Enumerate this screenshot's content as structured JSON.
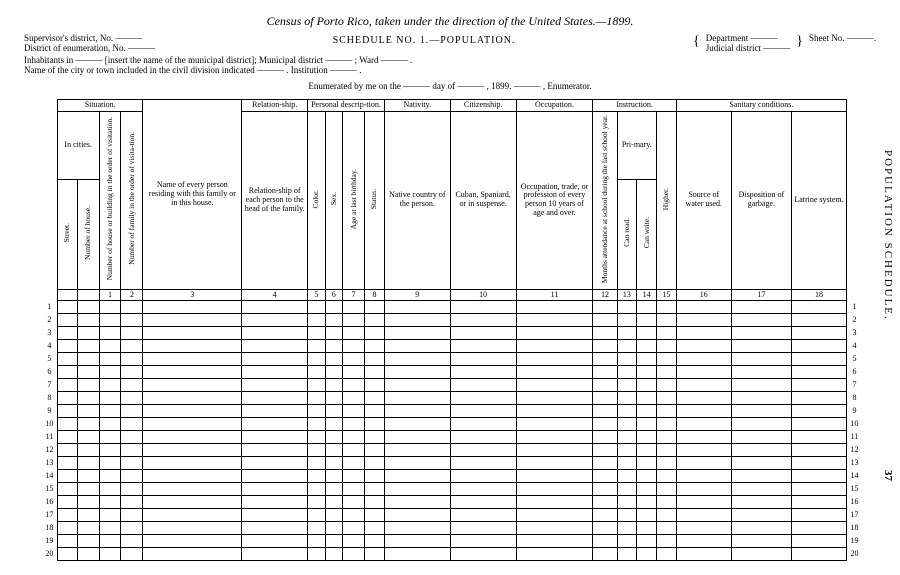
{
  "side_label": "POPULATION SCHEDULE.",
  "page_number": "37",
  "title": "Census of Porto Rico, taken under the direction of the United States.—1899.",
  "subtitle": "SCHEDULE NO. 1.—POPULATION.",
  "header_left": {
    "l1": "Supervisor's district, No. ———",
    "l2": "District of enumeration, No. ———"
  },
  "header_right": {
    "l1a": "Department ———",
    "l1b": "Judicial district ———",
    "l2": "Sheet No. ———."
  },
  "inhab1": "Inhabitants in ——— [insert the name of the municipal district]; Municipal district ——— ; Ward ——— .",
  "inhab2": "Name of the city or town included in the civil division indicated ——— . Institution ——— .",
  "enumerated": "Enumerated by me on the ——— day of ——— , 1899. ——— , Enumerator.",
  "groups": {
    "situation": "Situation.",
    "in_cities": "In cities.",
    "relationship": "Relation-ship.",
    "personal": "Personal descrip-tion.",
    "nativity": "Nativity.",
    "citizenship": "Citizenship.",
    "occupation": "Occupation.",
    "instruction": "Instruction.",
    "sanitary": "Sanitary conditions.",
    "primary": "Pri-mary."
  },
  "cols": {
    "street": "Street.",
    "house_no": "Number of house.",
    "c1": "Number of house or building in the order of visitation.",
    "c2": "Number of family in the order of visita-tion.",
    "c3": "Name of every person residing with this family or in this house.",
    "c4": "Relation-ship of each person to the head of the family.",
    "c5": "Color.",
    "c6": "Sex.",
    "c7": "Age at last birthday.",
    "c8": "Status.",
    "c9": "Native country of the person.",
    "c10": "Cuban, Spaniard, or in suspense.",
    "c11": "Occupation, trade, or profession of every person 10 years of age and over.",
    "c12": "Months attendance at school during the last school year.",
    "c13": "Can read.",
    "c14": "Can write.",
    "c15": "Higher.",
    "c16": "Source of water used.",
    "c17": "Disposition of garbage.",
    "c18": "Latrine system."
  },
  "colnums": [
    "",
    "",
    "1",
    "2",
    "3",
    "4",
    "5",
    "6",
    "7",
    "8",
    "9",
    "10",
    "11",
    "12",
    "13",
    "14",
    "15",
    "16",
    "17",
    "18"
  ],
  "row_groups": [
    [
      1,
      2,
      3
    ],
    [
      4,
      5,
      6
    ],
    [
      7,
      8,
      9
    ],
    [
      10,
      11,
      12
    ],
    [
      13,
      14,
      15
    ],
    [
      16,
      17,
      18
    ],
    [
      19,
      20
    ]
  ]
}
